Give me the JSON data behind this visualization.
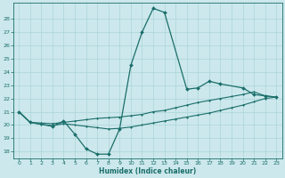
{
  "main_x": [
    0,
    1,
    3,
    4,
    5,
    6,
    7,
    8,
    9,
    10,
    11,
    12,
    13,
    15,
    16,
    17,
    18,
    20,
    21,
    22,
    23
  ],
  "main_y": [
    21.0,
    20.2,
    19.9,
    20.3,
    19.3,
    18.2,
    17.8,
    17.8,
    19.7,
    24.5,
    27.0,
    28.8,
    28.5,
    22.7,
    22.8,
    23.3,
    23.1,
    22.8,
    22.3,
    22.2,
    22.1
  ],
  "upper_x": [
    0,
    1,
    2,
    3,
    4,
    5,
    6,
    7,
    8,
    9,
    10,
    11,
    12,
    13,
    14,
    15,
    16,
    17,
    18,
    19,
    20,
    21,
    22,
    23
  ],
  "upper_y": [
    21.0,
    20.2,
    20.15,
    20.1,
    20.2,
    20.3,
    20.4,
    20.5,
    20.55,
    20.6,
    20.7,
    20.8,
    21.0,
    21.1,
    21.3,
    21.5,
    21.7,
    21.85,
    22.0,
    22.15,
    22.3,
    22.5,
    22.2,
    22.1
  ],
  "lower_x": [
    0,
    1,
    2,
    3,
    4,
    5,
    6,
    7,
    8,
    9,
    10,
    11,
    12,
    13,
    14,
    15,
    16,
    17,
    18,
    19,
    20,
    21,
    22,
    23
  ],
  "lower_y": [
    21.0,
    20.2,
    20.05,
    19.95,
    20.1,
    20.0,
    19.9,
    19.8,
    19.7,
    19.75,
    19.85,
    20.0,
    20.15,
    20.3,
    20.45,
    20.6,
    20.75,
    20.9,
    21.1,
    21.3,
    21.5,
    21.75,
    22.0,
    22.1
  ],
  "ylim": [
    17.5,
    29.2
  ],
  "yticks": [
    18,
    19,
    20,
    21,
    22,
    23,
    24,
    25,
    26,
    27,
    28
  ],
  "xticks": [
    0,
    1,
    2,
    3,
    4,
    5,
    6,
    7,
    8,
    9,
    10,
    11,
    12,
    13,
    14,
    15,
    16,
    17,
    18,
    19,
    20,
    21,
    22,
    23
  ],
  "xlabel": "Humidex (Indice chaleur)",
  "bg_color": "#cce8ec",
  "grid_color": "#aad4d8",
  "line_color": "#1a6e6a"
}
